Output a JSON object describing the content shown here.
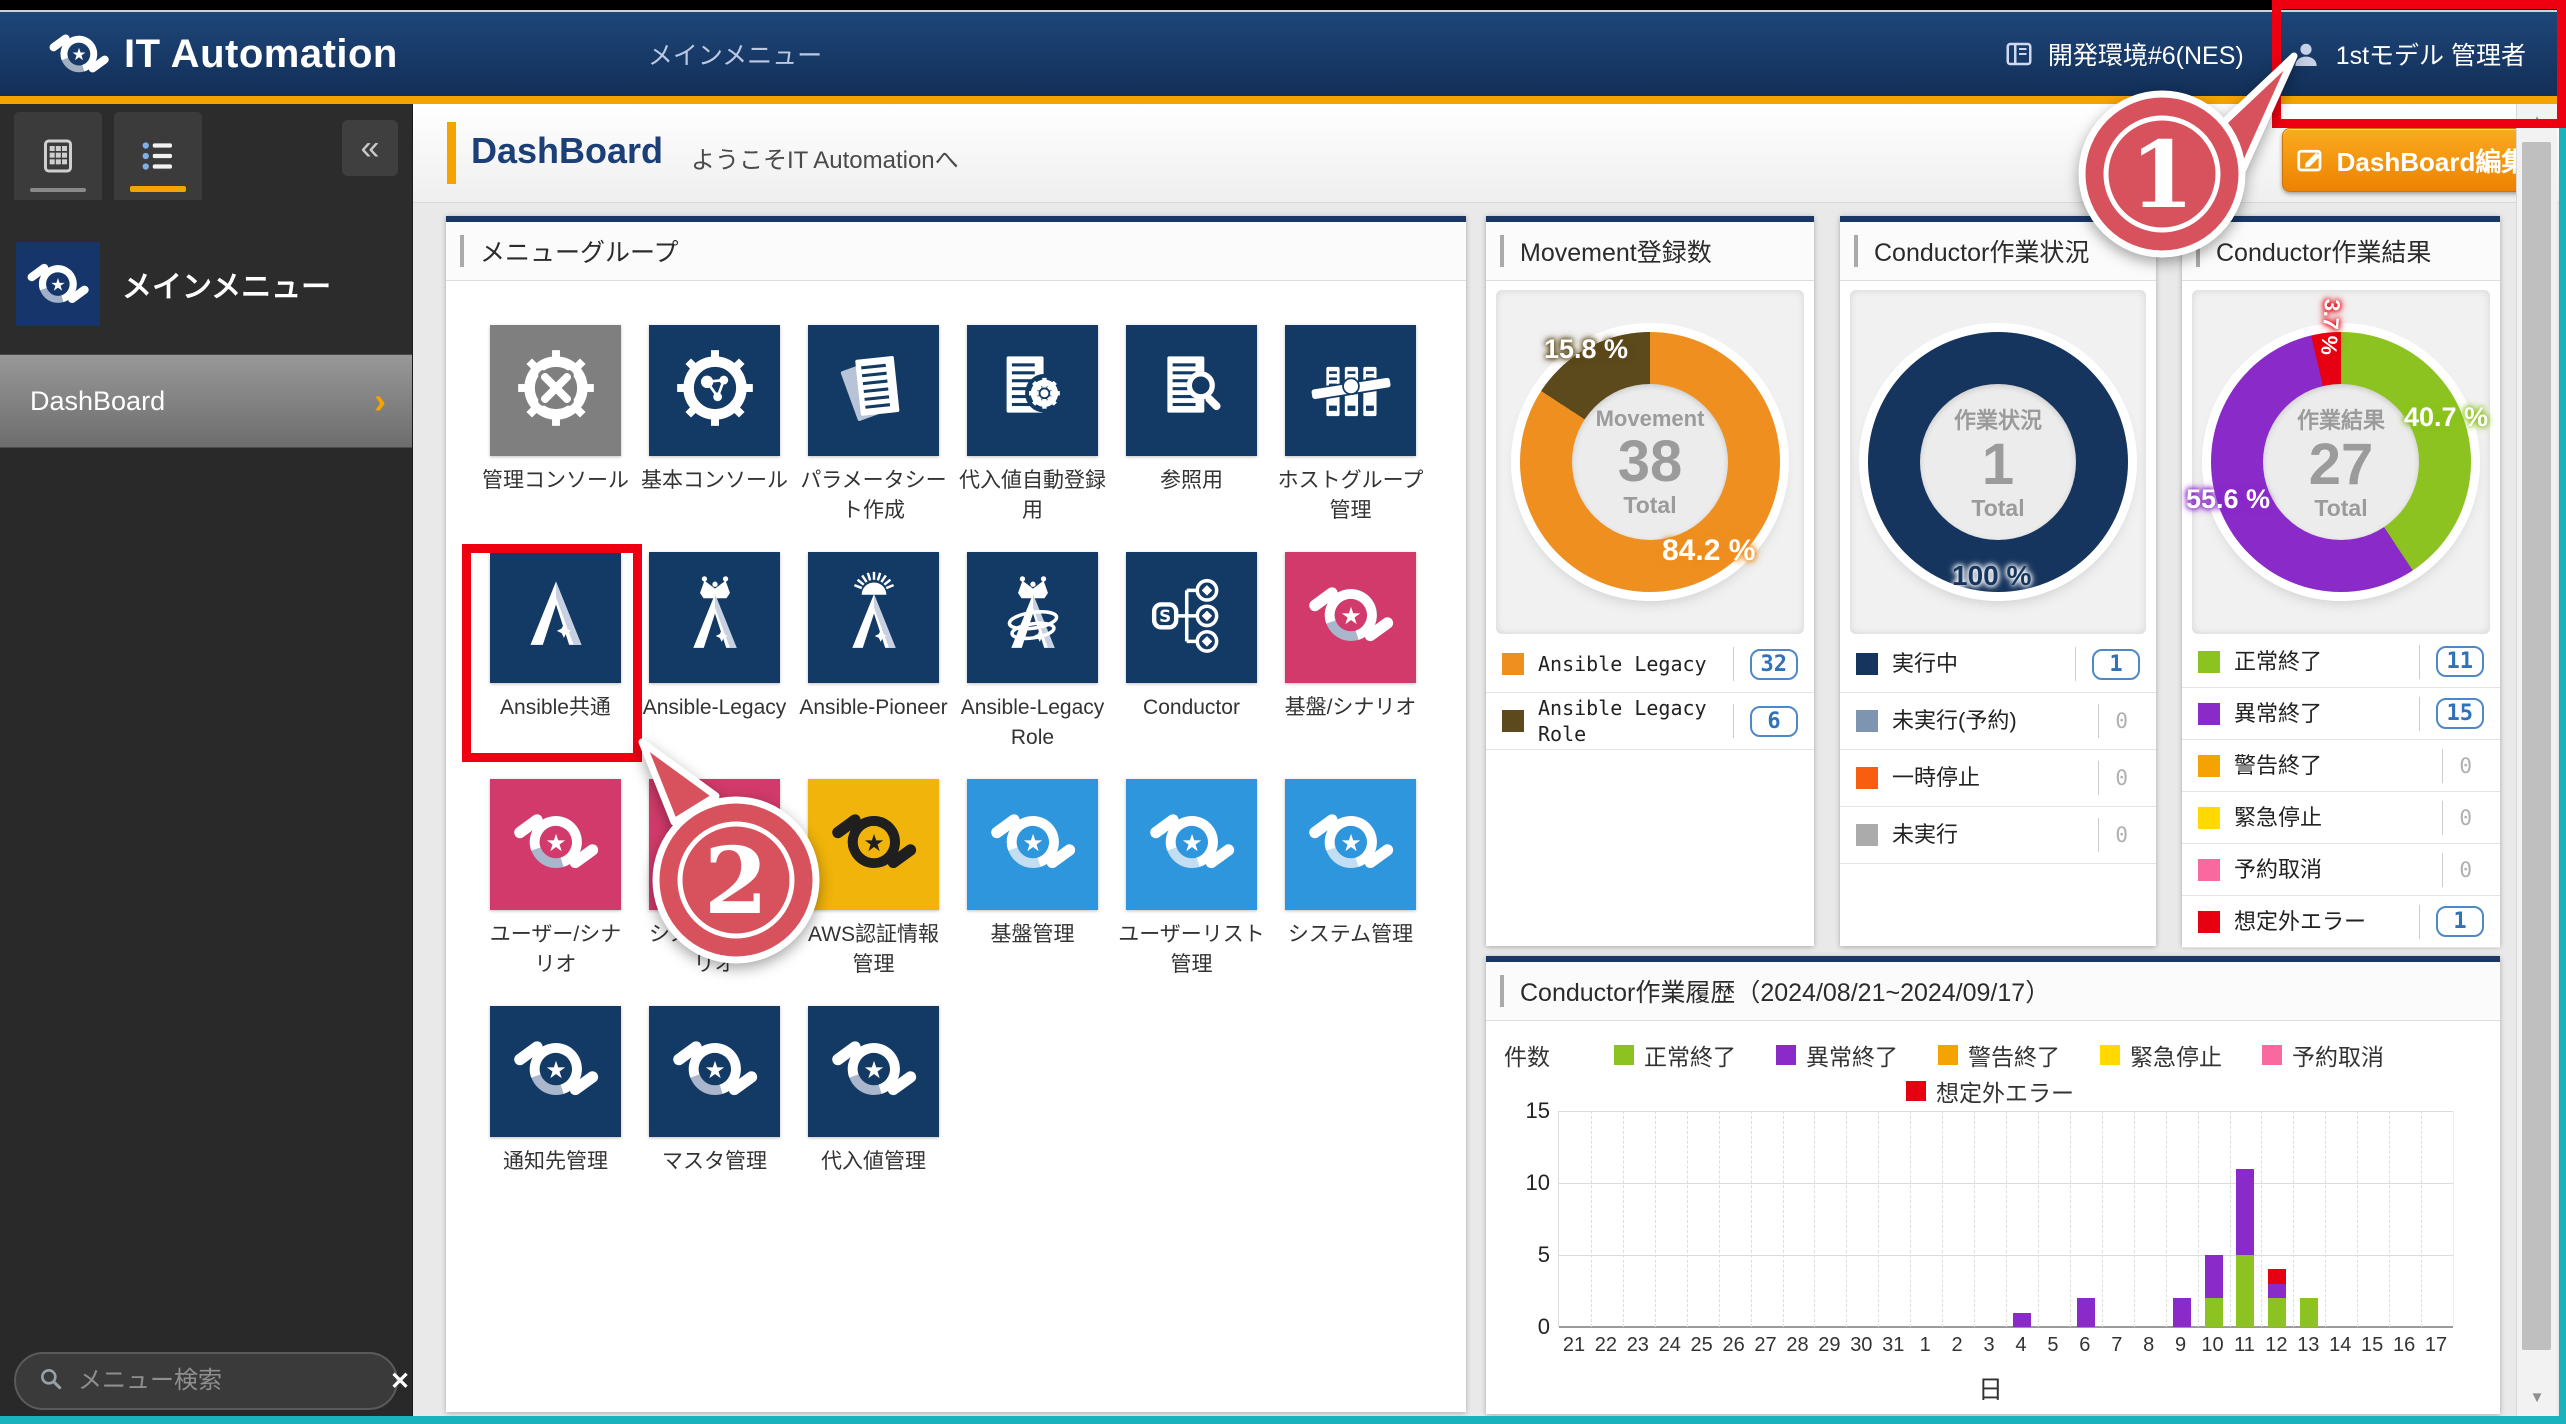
{
  "window": {
    "app_title": "IT Automation",
    "breadcrumb": "メインメニュー",
    "environment": "開発環境#6(NES)",
    "user": "1stモデル 管理者"
  },
  "page_header": {
    "title": "DashBoard",
    "welcome": "ようこそIT Automationへ",
    "edit_button": "DashBoard編集"
  },
  "sidebar": {
    "menu_title": "メインメニュー",
    "items": [
      {
        "label": "DashBoard"
      }
    ],
    "search_placeholder": "メニュー検索"
  },
  "icons": {
    "collapse": "«",
    "chevron": "›",
    "clear": "✕",
    "scroll_up": "▲",
    "scroll_down": "▼"
  },
  "menu_group": {
    "title": "メニューグループ",
    "tiles": [
      {
        "label": "管理コンソール",
        "bg": "#7f7f7f",
        "icon": "gear-tools"
      },
      {
        "label": "基本コンソール",
        "bg": "#133a64",
        "icon": "gear-nodes"
      },
      {
        "label": "パラメータシート作成",
        "bg": "#133a64",
        "icon": "sheets"
      },
      {
        "label": "代入値自動登録用",
        "bg": "#133a64",
        "icon": "sheet-gear"
      },
      {
        "label": "参照用",
        "bg": "#133a64",
        "icon": "sheet-magnifier"
      },
      {
        "label": "ホストグループ管理",
        "bg": "#133a64",
        "icon": "servers"
      },
      {
        "label": "Ansible共通",
        "bg": "#133a64",
        "icon": "ansible"
      },
      {
        "label": "Ansible-Legacy",
        "bg": "#133a64",
        "icon": "ansible-crown"
      },
      {
        "label": "Ansible-Pioneer",
        "bg": "#133a64",
        "icon": "ansible-sun"
      },
      {
        "label": "Ansible-LegacyRole",
        "bg": "#133a64",
        "icon": "ansible-crown-rings"
      },
      {
        "label": "Conductor",
        "bg": "#133a64",
        "icon": "conductor"
      },
      {
        "label": "基盤/シナリオ",
        "bg": "#d13a6a",
        "icon": "swirl",
        "fg": "#ffffff",
        "accent": "#a9b6cc"
      },
      {
        "label": "ユーザー/シナリオ",
        "bg": "#d13a6a",
        "icon": "swirl",
        "fg": "#ffffff",
        "accent": "#a9b6cc"
      },
      {
        "label": "システム/シナリオ",
        "bg": "#d13a6a",
        "icon": "swirl",
        "fg": "#ffffff",
        "accent": "#a9b6cc"
      },
      {
        "label": "AWS認証情報管理",
        "bg": "#f0b40a",
        "icon": "swirl",
        "fg": "#1f1f1f",
        "accent": "#1f1f1f"
      },
      {
        "label": "基盤管理",
        "bg": "#2e96dc",
        "icon": "swirl",
        "fg": "#ffffff",
        "accent": "#c3ddf2"
      },
      {
        "label": "ユーザーリスト管理",
        "bg": "#2e96dc",
        "icon": "swirl",
        "fg": "#ffffff",
        "accent": "#c3ddf2"
      },
      {
        "label": "システム管理",
        "bg": "#2e96dc",
        "icon": "swirl",
        "fg": "#ffffff",
        "accent": "#c3ddf2"
      },
      {
        "label": "通知先管理",
        "bg": "#133a64",
        "icon": "swirl",
        "fg": "#ffffff",
        "accent": "#a9b6cc"
      },
      {
        "label": "マスタ管理",
        "bg": "#133a64",
        "icon": "swirl",
        "fg": "#ffffff",
        "accent": "#a9b6cc"
      },
      {
        "label": "代入値管理",
        "bg": "#133a64",
        "icon": "swirl",
        "fg": "#ffffff",
        "accent": "#a9b6cc"
      }
    ]
  },
  "donut_panels": [
    {
      "title": "Movement登録数",
      "center": {
        "label": "Movement",
        "value": "38",
        "total_label": "Total"
      },
      "legend_font": "mono",
      "row_min_height": 56,
      "pct_labels": [
        {
          "text": "15.8 %",
          "glow": "#5d4a1c",
          "pos": "m0"
        },
        {
          "text": "84.2 %",
          "glow": "#ee8f20",
          "pos": "m1"
        }
      ],
      "legend": [
        {
          "label": "Ansible Legacy",
          "color": "#ee8f20",
          "value": 32
        },
        {
          "label": "Ansible Legacy Role",
          "color": "#5d4a1c",
          "value": 6
        }
      ]
    },
    {
      "title": "Conductor作業状況",
      "center": {
        "label": "作業状況",
        "value": "1",
        "total_label": "Total"
      },
      "legend_font": "sans",
      "row_min_height": 56,
      "pct_labels": [
        {
          "text": "100 %",
          "glow": "#ffffff",
          "dark": true,
          "pos": "s0"
        }
      ],
      "legend": [
        {
          "label": "実行中",
          "color": "#16355e",
          "value": 1
        },
        {
          "label": "未実行(予約)",
          "color": "#7d95b0",
          "value": 0
        },
        {
          "label": "一時停止",
          "color": "#f95e10",
          "value": 0
        },
        {
          "label": "未実行",
          "color": "#ababab",
          "value": 0
        }
      ]
    },
    {
      "title": "Conductor作業結果",
      "center": {
        "label": "作業結果",
        "value": "27",
        "total_label": "Total"
      },
      "legend_font": "sans",
      "row_min_height": 51,
      "pct_labels": [
        {
          "text": "40.7 %",
          "glow": "#8cc320",
          "pos": "r0"
        },
        {
          "text": "55.6 %",
          "glow": "#8a2bc9",
          "pos": "r1"
        },
        {
          "text": "3.7 %",
          "glow": "#e60012",
          "pos": "r2"
        }
      ],
      "legend": [
        {
          "label": "正常終了",
          "color": "#8cc320",
          "value": 11
        },
        {
          "label": "異常終了",
          "color": "#8a2bc9",
          "value": 15
        },
        {
          "label": "警告終了",
          "color": "#f5a300",
          "value": 0
        },
        {
          "label": "緊急停止",
          "color": "#ffd900",
          "value": 0
        },
        {
          "label": "予約取消",
          "color": "#f9699f",
          "value": 0
        },
        {
          "label": "想定外エラー",
          "color": "#e60012",
          "value": 1
        }
      ]
    }
  ],
  "history_panel": {
    "title": "Conductor作業履歴（2024/08/21~2024/09/17）",
    "ylabel": "件数",
    "xlabel": "日",
    "legend_rows": [
      [
        0,
        1,
        2,
        3,
        4
      ],
      [
        5
      ]
    ]
  },
  "chart_data": [
    {
      "type": "pie",
      "title": "Movement登録数",
      "center_total": 38,
      "segments": [
        {
          "label": "Ansible Legacy",
          "value": 32,
          "pct": 84.2,
          "color": "#ee8f20"
        },
        {
          "label": "Ansible Legacy Role",
          "value": 6,
          "pct": 15.8,
          "color": "#5d4a1c"
        }
      ]
    },
    {
      "type": "pie",
      "title": "Conductor作業状況",
      "center_total": 1,
      "segments": [
        {
          "label": "実行中",
          "value": 1,
          "pct": 100,
          "color": "#16355e"
        },
        {
          "label": "未実行(予約)",
          "value": 0,
          "pct": 0,
          "color": "#7d95b0"
        },
        {
          "label": "一時停止",
          "value": 0,
          "pct": 0,
          "color": "#f95e10"
        },
        {
          "label": "未実行",
          "value": 0,
          "pct": 0,
          "color": "#ababab"
        }
      ]
    },
    {
      "type": "pie",
      "title": "Conductor作業結果",
      "center_total": 27,
      "segments": [
        {
          "label": "正常終了",
          "value": 11,
          "pct": 40.7,
          "color": "#8cc320"
        },
        {
          "label": "異常終了",
          "value": 15,
          "pct": 55.6,
          "color": "#8a2bc9"
        },
        {
          "label": "警告終了",
          "value": 0,
          "pct": 0,
          "color": "#f5a300"
        },
        {
          "label": "緊急停止",
          "value": 0,
          "pct": 0,
          "color": "#ffd900"
        },
        {
          "label": "予約取消",
          "value": 0,
          "pct": 0,
          "color": "#f9699f"
        },
        {
          "label": "想定外エラー",
          "value": 1,
          "pct": 3.7,
          "color": "#e60012"
        }
      ]
    },
    {
      "type": "bar",
      "stacked": true,
      "title": "Conductor作業履歴（2024/08/21~2024/09/17）",
      "xlabel": "日",
      "ylabel": "件数",
      "ylim": [
        0,
        15
      ],
      "yticks": [
        0,
        5,
        10,
        15
      ],
      "grid": true,
      "categories": [
        "21",
        "22",
        "23",
        "24",
        "25",
        "26",
        "27",
        "28",
        "29",
        "30",
        "31",
        "1",
        "2",
        "3",
        "4",
        "5",
        "6",
        "7",
        "8",
        "9",
        "10",
        "11",
        "12",
        "13",
        "14",
        "15",
        "16",
        "17"
      ],
      "series": [
        {
          "name": "正常終了",
          "color": "#8cc320",
          "values": [
            0,
            0,
            0,
            0,
            0,
            0,
            0,
            0,
            0,
            0,
            0,
            0,
            0,
            0,
            0,
            0,
            0,
            0,
            0,
            0,
            2,
            5,
            2,
            2,
            0,
            0,
            0,
            0
          ]
        },
        {
          "name": "異常終了",
          "color": "#8a2bc9",
          "values": [
            0,
            0,
            0,
            0,
            0,
            0,
            0,
            0,
            0,
            0,
            0,
            0,
            0,
            0,
            1,
            0,
            2,
            0,
            0,
            2,
            3,
            6,
            1,
            0,
            0,
            0,
            0,
            0
          ]
        },
        {
          "name": "警告終了",
          "color": "#f5a300",
          "values": [
            0,
            0,
            0,
            0,
            0,
            0,
            0,
            0,
            0,
            0,
            0,
            0,
            0,
            0,
            0,
            0,
            0,
            0,
            0,
            0,
            0,
            0,
            0,
            0,
            0,
            0,
            0,
            0
          ]
        },
        {
          "name": "緊急停止",
          "color": "#ffd900",
          "values": [
            0,
            0,
            0,
            0,
            0,
            0,
            0,
            0,
            0,
            0,
            0,
            0,
            0,
            0,
            0,
            0,
            0,
            0,
            0,
            0,
            0,
            0,
            0,
            0,
            0,
            0,
            0,
            0
          ]
        },
        {
          "name": "予約取消",
          "color": "#f9699f",
          "values": [
            0,
            0,
            0,
            0,
            0,
            0,
            0,
            0,
            0,
            0,
            0,
            0,
            0,
            0,
            0,
            0,
            0,
            0,
            0,
            0,
            0,
            0,
            0,
            0,
            0,
            0,
            0,
            0
          ]
        },
        {
          "name": "想定外エラー",
          "color": "#e60012",
          "values": [
            0,
            0,
            0,
            0,
            0,
            0,
            0,
            0,
            0,
            0,
            0,
            0,
            0,
            0,
            0,
            0,
            0,
            0,
            0,
            0,
            0,
            0,
            1,
            0,
            0,
            0,
            0,
            0
          ]
        }
      ]
    }
  ],
  "annotations": {
    "callouts": [
      {
        "number": "1"
      },
      {
        "number": "2"
      }
    ]
  }
}
